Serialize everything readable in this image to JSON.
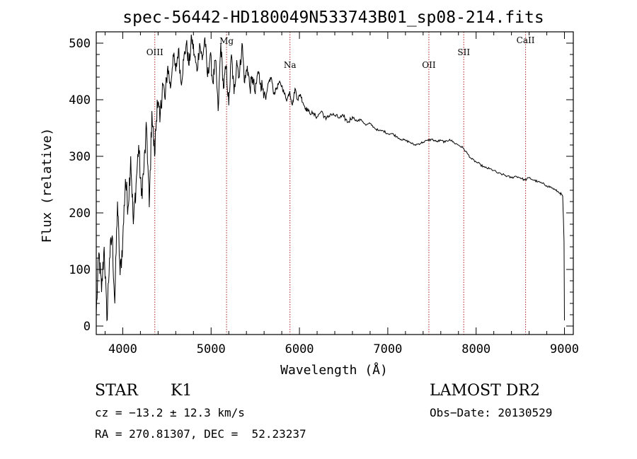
{
  "chart_data": {
    "type": "line",
    "title": "spec-56442-HD180049N533743B01_sp08-214.fits",
    "xlabel": "Wavelength (Å)",
    "ylabel": "Flux (relative)",
    "xlim": [
      3700,
      9100
    ],
    "ylim": [
      -15,
      520
    ],
    "x_ticks": [
      4000,
      5000,
      6000,
      7000,
      8000,
      9000
    ],
    "y_ticks": [
      0,
      100,
      200,
      300,
      400,
      500
    ],
    "grid": false,
    "series": [
      {
        "x": [
          3700,
          3730,
          3760,
          3790,
          3820,
          3850,
          3880,
          3910,
          3940,
          3970,
          4000,
          4030,
          4060,
          4090,
          4120,
          4150,
          4180,
          4210,
          4240,
          4270,
          4300,
          4330,
          4360,
          4390,
          4420,
          4450,
          4480,
          4510,
          4540,
          4570,
          4600,
          4630,
          4660,
          4690,
          4720,
          4750,
          4780,
          4810,
          4840,
          4870,
          4900,
          4930,
          4960,
          4990,
          5020,
          5050,
          5080,
          5110,
          5140,
          5170,
          5200,
          5230,
          5260,
          5290,
          5320,
          5350,
          5380,
          5410,
          5440,
          5470,
          5500,
          5530,
          5560,
          5590,
          5620,
          5650,
          5680,
          5710,
          5740,
          5770,
          5800,
          5830,
          5860,
          5890,
          5920,
          5950,
          5980,
          6010,
          6040,
          6070,
          6100,
          6150,
          6200,
          6250,
          6300,
          6350,
          6400,
          6450,
          6500,
          6550,
          6600,
          6650,
          6700,
          6750,
          6800,
          6850,
          6900,
          6950,
          7000,
          7050,
          7100,
          7150,
          7200,
          7250,
          7300,
          7350,
          7400,
          7450,
          7500,
          7550,
          7600,
          7650,
          7700,
          7750,
          7800,
          7850,
          7900,
          7950,
          8000,
          8050,
          8100,
          8150,
          8200,
          8250,
          8300,
          8350,
          8400,
          8450,
          8500,
          8550,
          8600,
          8650,
          8700,
          8750,
          8800,
          8850,
          8900,
          8950,
          8980,
          8995,
          9000
        ],
        "y": [
          20,
          130,
          60,
          140,
          10,
          120,
          160,
          40,
          220,
          90,
          150,
          260,
          210,
          300,
          180,
          250,
          320,
          230,
          280,
          350,
          210,
          380,
          300,
          400,
          360,
          430,
          400,
          460,
          420,
          480,
          450,
          490,
          430,
          470,
          500,
          460,
          510,
          480,
          450,
          500,
          470,
          510,
          440,
          480,
          430,
          470,
          380,
          500,
          420,
          460,
          390,
          480,
          410,
          470,
          440,
          500,
          430,
          460,
          420,
          440,
          410,
          450,
          430,
          420,
          400,
          430,
          440,
          410,
          420,
          430,
          425,
          410,
          400,
          415,
          390,
          420,
          400,
          410,
          395,
          385,
          380,
          375,
          370,
          380,
          365,
          375,
          372,
          368,
          370,
          360,
          370,
          362,
          365,
          355,
          358,
          350,
          345,
          345,
          340,
          340,
          335,
          330,
          328,
          325,
          320,
          322,
          325,
          328,
          330,
          326,
          328,
          325,
          330,
          324,
          320,
          315,
          305,
          295,
          290,
          285,
          280,
          278,
          275,
          270,
          268,
          265,
          262,
          265,
          262,
          258,
          262,
          258,
          255,
          252,
          248,
          245,
          240,
          235,
          230,
          150,
          10
        ]
      }
    ],
    "annotations": [
      {
        "label": "OIII",
        "x": 4363
      },
      {
        "label": "Mg",
        "x": 5175
      },
      {
        "label": "Na",
        "x": 5893
      },
      {
        "label": "OII",
        "x": 7465
      },
      {
        "label": "SII",
        "x": 7860
      },
      {
        "label": "CaII",
        "x": 8560
      }
    ],
    "colors": {
      "line": "#000000",
      "annotation_line": "#b22222",
      "axes": "#000000"
    }
  },
  "info": {
    "class": "STAR",
    "subclass": "K1",
    "survey": "LAMOST DR2",
    "cz": "cz = −13.2 ± 12.3 km/s",
    "obs_date": "Obs−Date: 20130529",
    "coords": "RA = 270.81307, DEC =  52.23237"
  }
}
